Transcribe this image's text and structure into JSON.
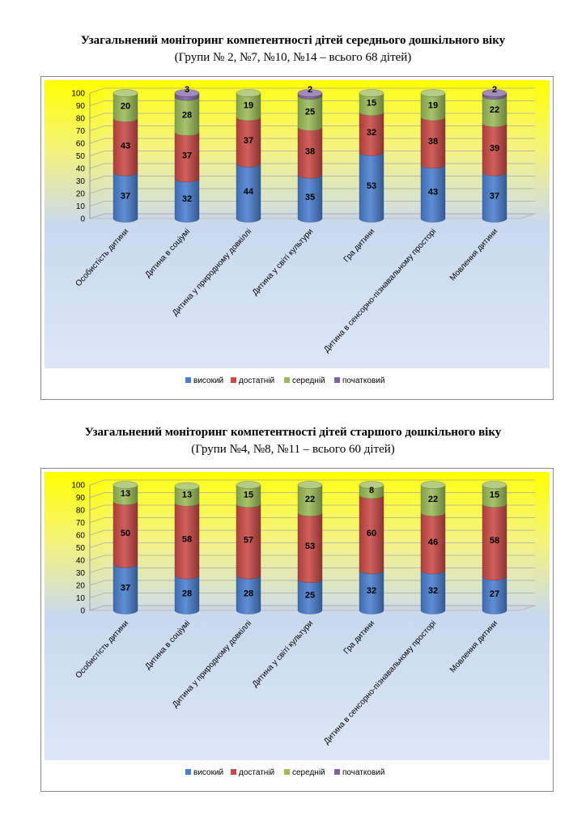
{
  "colors": {
    "series": [
      "#4a7fcf",
      "#c94a46",
      "#9bbb59",
      "#8064a2"
    ],
    "background_top": "#ffff00",
    "background_bottom": "#d6e3f5"
  },
  "charts": [
    {
      "title": "Узагальнений моніторинг компетентності дітей середнього дошкільного віку",
      "subtitle": "(Групи № 2, №7, №10, №14 – всього 68 дітей)"
    },
    {
      "title": "Узагальнений моніторинг компетентності дітей старшого дошкільного віку",
      "subtitle": "(Групи №4, №8, №11 – всього 60 дітей)"
    }
  ],
  "chart_data": [
    {
      "type": "bar",
      "stacked": true,
      "ylim": [
        0,
        100
      ],
      "yticks": [
        0,
        10,
        20,
        30,
        40,
        50,
        60,
        70,
        80,
        90,
        100
      ],
      "legend_position": "bottom",
      "categories": [
        "Особистість дитини",
        "Дитина в соціумі",
        "Дитина у природному довкіллі",
        "Дитина у світі культури",
        "Гра дитини",
        "Дитина в сенсорно-пізнавальному просторі",
        "Мовлення дитини"
      ],
      "series": [
        {
          "name": "високий",
          "values": [
            37,
            32,
            44,
            35,
            53,
            43,
            37
          ]
        },
        {
          "name": "достатній",
          "values": [
            43,
            37,
            37,
            38,
            32,
            38,
            39
          ]
        },
        {
          "name": "середній",
          "values": [
            20,
            28,
            19,
            25,
            15,
            19,
            22
          ]
        },
        {
          "name": "початковий",
          "values": [
            0,
            3,
            0,
            2,
            0,
            0,
            2
          ]
        }
      ]
    },
    {
      "type": "bar",
      "stacked": true,
      "ylim": [
        0,
        100
      ],
      "yticks": [
        0,
        10,
        20,
        30,
        40,
        50,
        60,
        70,
        80,
        90,
        100
      ],
      "legend_position": "bottom",
      "categories": [
        "Особистість дитини",
        "Дитина в соціумі",
        "Дитина у природному довкіллі",
        "Дитина у світі культури",
        "Гра дитини",
        "Дитина в сенсорно-пізнавальному просторі",
        "Мовлення дитини"
      ],
      "series": [
        {
          "name": "високий",
          "values": [
            37,
            28,
            28,
            25,
            32,
            32,
            27
          ]
        },
        {
          "name": "достатній",
          "values": [
            50,
            58,
            57,
            53,
            60,
            46,
            58
          ]
        },
        {
          "name": "середній",
          "values": [
            13,
            13,
            15,
            22,
            8,
            22,
            15
          ]
        },
        {
          "name": "початковий",
          "values": [
            0,
            0,
            0,
            0,
            0,
            0,
            0
          ]
        }
      ]
    }
  ]
}
